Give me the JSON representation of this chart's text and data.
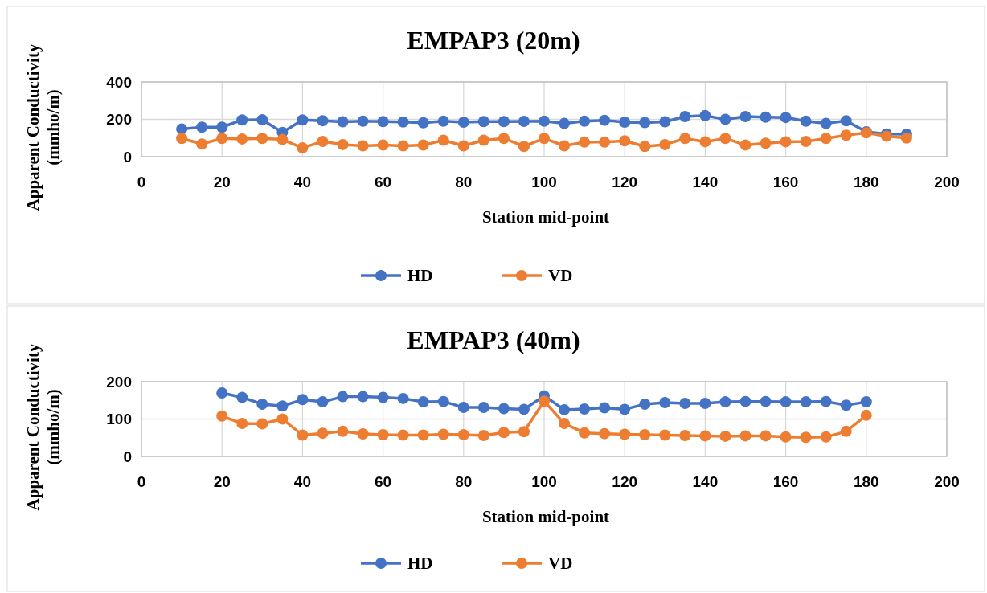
{
  "chart_data": [
    {
      "type": "line",
      "title": "EMPAP3 (20m)",
      "xlabel": "Station mid-point",
      "ylabel": "Apparent Conductivity\n(mmho/m)",
      "xlim": [
        0,
        200
      ],
      "xticks": [
        0,
        20,
        40,
        60,
        80,
        100,
        120,
        140,
        160,
        180,
        200
      ],
      "ylim": [
        0,
        400
      ],
      "yticks": [
        0,
        200,
        400
      ],
      "grid": true,
      "legend": "bottom",
      "marker": "circle",
      "x": [
        10,
        15,
        20,
        25,
        30,
        35,
        40,
        45,
        50,
        55,
        60,
        65,
        70,
        75,
        80,
        85,
        90,
        95,
        100,
        105,
        110,
        115,
        120,
        125,
        130,
        135,
        140,
        145,
        150,
        155,
        160,
        165,
        170,
        175,
        180,
        185,
        190
      ],
      "series": [
        {
          "name": "HD",
          "color": "#4472c4",
          "values": [
            148,
            158,
            158,
            197,
            198,
            130,
            197,
            193,
            187,
            190,
            188,
            186,
            182,
            190,
            185,
            188,
            188,
            189,
            190,
            178,
            190,
            195,
            185,
            183,
            187,
            215,
            220,
            200,
            215,
            212,
            210,
            190,
            178,
            192,
            133,
            122,
            120
          ]
        },
        {
          "name": "VD",
          "color": "#ed7d31",
          "values": [
            98,
            68,
            98,
            95,
            98,
            92,
            47,
            82,
            65,
            58,
            62,
            58,
            62,
            88,
            58,
            88,
            98,
            55,
            98,
            58,
            78,
            78,
            85,
            55,
            65,
            98,
            80,
            98,
            62,
            72,
            80,
            82,
            98,
            115,
            128,
            110,
            100
          ]
        }
      ]
    },
    {
      "type": "line",
      "title": "EMPAP3 (40m)",
      "xlabel": "Station mid-point",
      "ylabel": "Apparent Conductivity\n(mmho/m)",
      "xlim": [
        0,
        200
      ],
      "xticks": [
        0,
        20,
        40,
        60,
        80,
        100,
        120,
        140,
        160,
        180,
        200
      ],
      "ylim": [
        0,
        200
      ],
      "yticks": [
        0,
        100,
        200
      ],
      "grid": true,
      "legend": "bottom",
      "marker": "circle",
      "x": [
        20,
        25,
        30,
        35,
        40,
        45,
        50,
        55,
        60,
        65,
        70,
        75,
        80,
        85,
        90,
        95,
        100,
        105,
        110,
        115,
        120,
        125,
        130,
        135,
        140,
        145,
        150,
        155,
        160,
        165,
        170,
        175,
        180
      ],
      "series": [
        {
          "name": "HD",
          "color": "#4472c4",
          "values": [
            170,
            158,
            140,
            135,
            152,
            146,
            160,
            160,
            158,
            155,
            146,
            147,
            131,
            131,
            128,
            126,
            162,
            125,
            127,
            130,
            126,
            140,
            144,
            142,
            142,
            146,
            147,
            147,
            146,
            146,
            147,
            137,
            146
          ]
        },
        {
          "name": "VD",
          "color": "#ed7d31",
          "values": [
            108,
            88,
            87,
            100,
            57,
            62,
            67,
            60,
            58,
            57,
            57,
            59,
            58,
            56,
            64,
            66,
            148,
            88,
            63,
            61,
            59,
            58,
            57,
            56,
            55,
            54,
            55,
            55,
            52,
            51,
            52,
            67,
            110
          ]
        }
      ]
    }
  ]
}
